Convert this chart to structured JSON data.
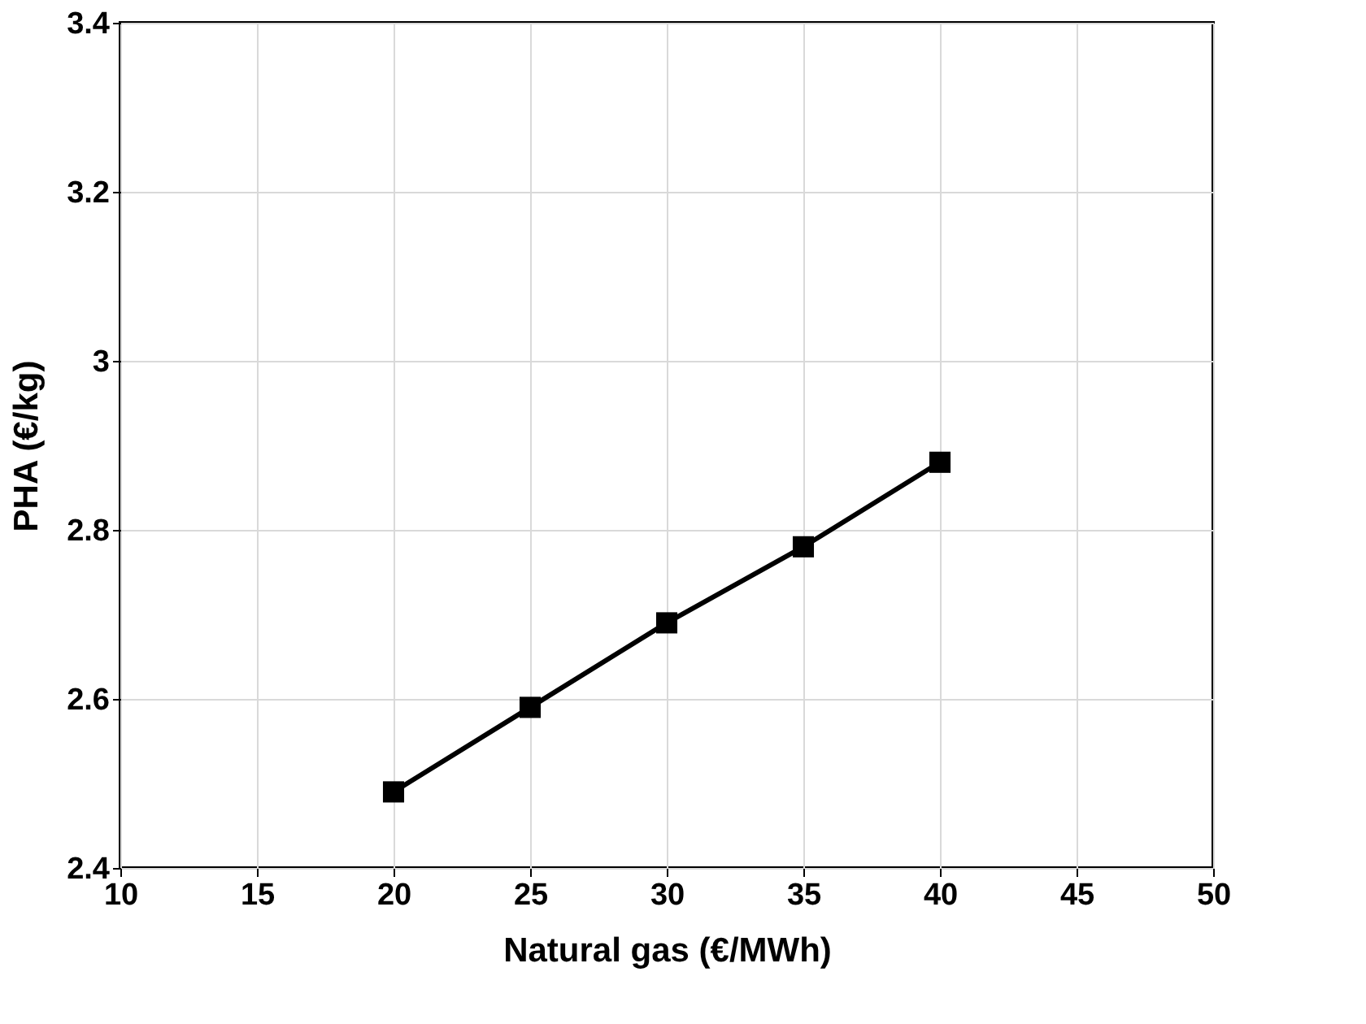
{
  "chart_data": {
    "type": "line",
    "xlabel": "Natural gas (€/MWh)",
    "ylabel": "PHA (€/kg)",
    "x": [
      20,
      25,
      30,
      35,
      40
    ],
    "series": [
      {
        "color": "#000000",
        "values": [
          2.49,
          2.59,
          2.69,
          2.78,
          2.88
        ]
      }
    ],
    "xlim": [
      10,
      50
    ],
    "xticks": [
      10,
      15,
      20,
      25,
      30,
      35,
      40,
      45,
      50
    ],
    "ylim": [
      2.4,
      3.4
    ],
    "yticks": [
      2.4,
      2.6,
      2.8,
      3,
      3.2,
      3.4
    ],
    "grid": true,
    "marker": "square",
    "line_style": "solid",
    "legend": false
  }
}
